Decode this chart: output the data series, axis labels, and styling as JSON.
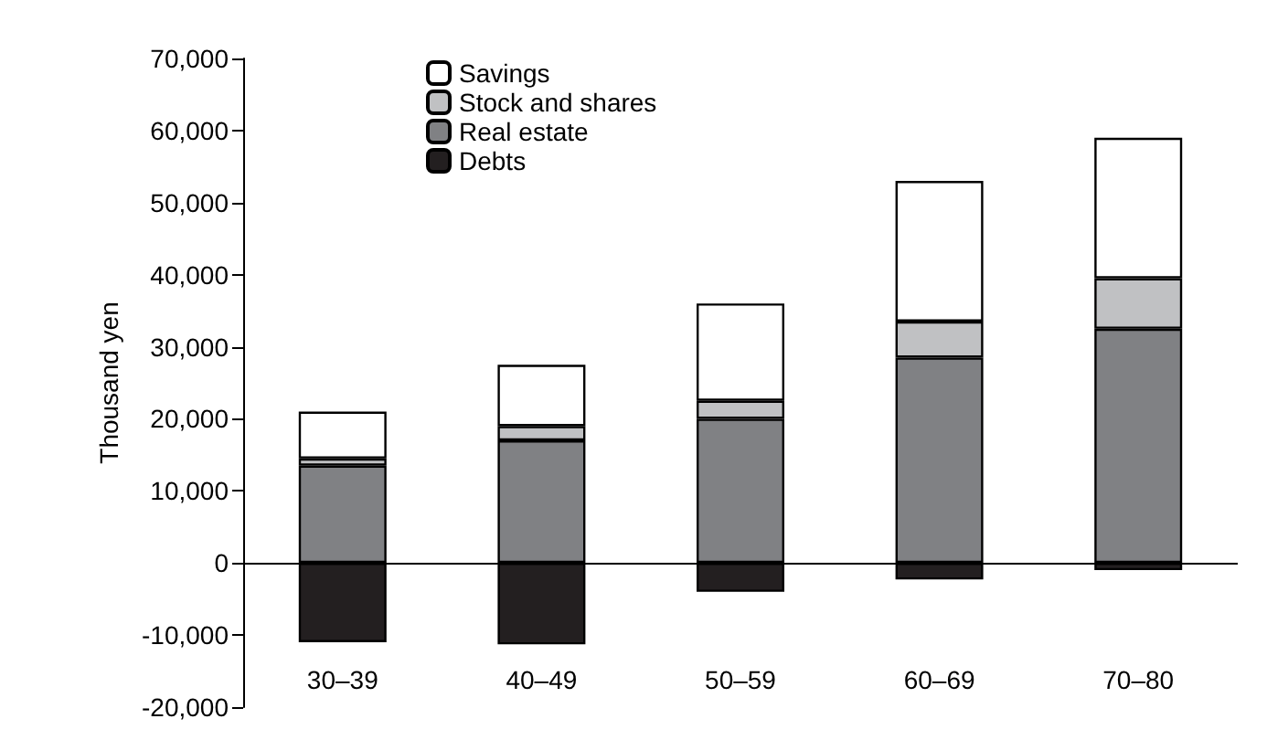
{
  "chart_data": {
    "type": "bar",
    "stacked": true,
    "ylabel": "Thousand yen",
    "categories": [
      "30–39",
      "40–49",
      "50–59",
      "60–69",
      "70–80"
    ],
    "series": [
      {
        "name": "Debts",
        "color": "#231f20",
        "values": [
          -11000,
          -11300,
          -4000,
          -2300,
          -1000
        ]
      },
      {
        "name": "Real estate",
        "color": "#808184",
        "values": [
          13500,
          17000,
          20000,
          28500,
          32500
        ]
      },
      {
        "name": "Stock and shares",
        "color": "#c0c1c3",
        "values": [
          1000,
          2000,
          2500,
          5000,
          7000
        ]
      },
      {
        "name": "Savings",
        "color": "#ffffff",
        "values": [
          6500,
          8500,
          13500,
          19500,
          19500
        ]
      }
    ],
    "ylim": [
      -20000,
      70000
    ],
    "yticks": [
      {
        "value": -20000,
        "label": "-20,000"
      },
      {
        "value": -10000,
        "label": "-10,000"
      },
      0,
      {
        "value": 10000,
        "label": "10,000"
      },
      {
        "value": 20000,
        "label": "20,000"
      },
      {
        "value": 30000,
        "label": "30,000"
      },
      {
        "value": 40000,
        "label": "40,000"
      },
      {
        "value": 50000,
        "label": "50,000"
      },
      {
        "value": 60000,
        "label": "60,000"
      },
      {
        "value": 70000,
        "label": "70,000"
      }
    ],
    "grid": false,
    "ref_lines": [
      {
        "axis": "y",
        "value": 0,
        "color": "#000000"
      }
    ],
    "legend": "top left"
  }
}
